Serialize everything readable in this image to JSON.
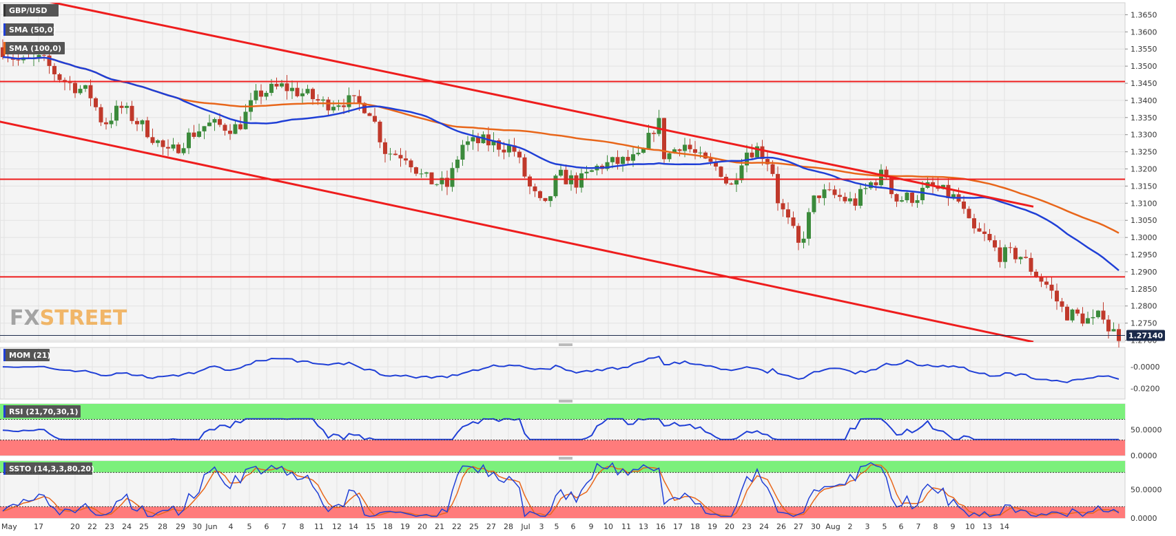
{
  "colors": {
    "background": "#ffffff",
    "plot_bg": "#f4f4f4",
    "grid": "#e2e2e2",
    "bull_candle": "#3b8a3b",
    "bear_candle": "#c0392b",
    "sma50": "#1f3fd6",
    "sma100": "#e8661a",
    "trendline": "#ee1d1d",
    "price_tag": "#1b2a4a",
    "overbought_zone": "#7cf07c",
    "oversold_zone": "#ff7b7b",
    "indicator_line": "#1f3fd6",
    "stoch_signal": "#e8661a",
    "badge": "#555555",
    "watermark": "#f0a23a"
  },
  "watermark": {
    "fx": "FX",
    "street": "STREET"
  },
  "chart_data": [
    {
      "type": "candlestick",
      "title": "",
      "symbol": "GBP/USD",
      "legend": [
        "SMA (50,0)",
        "SMA (100,0)"
      ],
      "last_price_label": "1.27140",
      "last_price": 1.2714,
      "ylim": [
        1.2695,
        1.3685
      ],
      "y_ticks": [
        "1.2700",
        "1.2750",
        "1.2800",
        "1.2850",
        "1.2900",
        "1.2950",
        "1.3000",
        "1.3050",
        "1.3100",
        "1.3150",
        "1.3200",
        "1.3250",
        "1.3300",
        "1.3350",
        "1.3400",
        "1.3450",
        "1.3500",
        "1.3550",
        "1.3600",
        "1.3650"
      ],
      "horizontal_levels": [
        1.3455,
        1.317,
        1.2885
      ],
      "trendline_upper": [
        [
          -5,
          1.372
        ],
        [
          1500,
          1.309
        ]
      ],
      "trendline_lower": [
        [
          -5,
          1.334
        ],
        [
          1500,
          1.2695
        ]
      ],
      "grid": true
    },
    {
      "type": "line",
      "name": "MOM (21)",
      "ylim": [
        -0.03,
        0.018
      ],
      "y_ticks": [
        "-0.0000",
        "-0.0200"
      ],
      "grid": true
    },
    {
      "type": "line",
      "name": "RSI (21,70,30,1)",
      "ylim": [
        0,
        100
      ],
      "y_ticks": [
        "50.0000",
        "0.0000"
      ],
      "overbought": 70,
      "oversold": 30,
      "grid": true
    },
    {
      "type": "line",
      "name": "SSTO (14,3,3,80,20)",
      "ylim": [
        0,
        100
      ],
      "y_ticks": [
        "50.0000",
        "0.0000"
      ],
      "overbought": 80,
      "oversold": 20,
      "grid": true
    }
  ],
  "x_axis": {
    "labels": [
      "May",
      "17",
      "20",
      "22",
      "23",
      "24",
      "25",
      "28",
      "29",
      "30",
      "Jun",
      "4",
      "5",
      "6",
      "7",
      "8",
      "11",
      "12",
      "14",
      "15",
      "18",
      "19",
      "20",
      "21",
      "22",
      "25",
      "27",
      "28",
      "Jul",
      "3",
      "5",
      "6",
      "9",
      "10",
      "11",
      "13",
      "16",
      "17",
      "18",
      "19",
      "20",
      "23",
      "24",
      "26",
      "27",
      "30",
      "Aug",
      "2",
      "3",
      "5",
      "6",
      "7",
      "8",
      "9",
      "10",
      "13",
      "14"
    ],
    "positions": [
      0,
      50,
      103,
      128,
      153,
      178,
      203,
      230,
      256,
      280,
      301,
      329,
      356,
      381,
      406,
      432,
      457,
      483,
      507,
      532,
      557,
      582,
      607,
      632,
      657,
      682,
      707,
      732,
      757,
      780,
      802,
      826,
      852,
      877,
      903,
      928,
      953,
      978,
      1003,
      1028,
      1053,
      1078,
      1103,
      1128,
      1153,
      1178,
      1203,
      1228,
      1253,
      1278,
      1302,
      1327,
      1352,
      1377,
      1402,
      1427,
      1452
    ]
  }
}
